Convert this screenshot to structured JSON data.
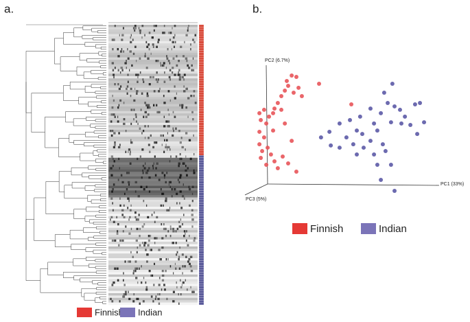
{
  "panel_labels": [
    "a.",
    "b."
  ],
  "chart_data": {
    "type": "scatter",
    "x_label": "PC1 (33%)",
    "y_label": "PC2 (6.7%)",
    "z_label": "PC3 (5%)",
    "xlim": [
      0,
      100
    ],
    "ylim": [
      0,
      100
    ],
    "series": [
      {
        "name": "Finnish",
        "color": "#e8555a",
        "x": [
          8.1,
          10.5,
          8.8,
          11.6,
          13.0,
          15.8,
          17.5,
          19.3,
          21.1,
          22.8,
          24.6,
          27.0,
          22.1,
          25.6,
          28.1,
          29.8,
          19.3,
          15.1,
          10.5,
          8.1,
          9.5,
          12.3,
          14.0,
          8.8,
          11.6,
          15.8,
          17.5,
          20.0,
          22.8,
          27.0,
          24.6,
          21.1,
          15.1,
          38.6,
          55.1,
          8.1
        ],
        "values": [
          62.2,
          64.9,
          56.8,
          54.1,
          59.5,
          65.9,
          70.3,
          75.7,
          80.0,
          83.8,
          91.9,
          90.8,
          87.6,
          78.4,
          82.2,
          75.7,
          64.9,
          48.6,
          43.2,
          37.8,
          32.4,
          35.1,
          29.7,
          27.0,
          21.6,
          24.3,
          18.9,
          28.1,
          22.7,
          16.2,
          40.5,
          54.1,
          62.2,
          85.4,
          69.2,
          47.6
        ]
      },
      {
        "name": "Indian",
        "color": "#5c5aa6",
        "x": [
          76.1,
          71.9,
          73.7,
          77.2,
          80.0,
          82.5,
          87.7,
          90.2,
          92.3,
          88.8,
          85.3,
          80.7,
          75.4,
          70.2,
          64.9,
          59.6,
          54.4,
          49.1,
          43.9,
          39.6,
          44.6,
          49.1,
          52.6,
          56.1,
          57.9,
          60.7,
          61.4,
          64.9,
          66.7,
          68.4,
          71.2,
          72.6,
          75.4,
          68.4,
          70.2,
          77.2,
          57.9,
          66.7
        ],
        "values": [
          85.4,
          78.4,
          70.3,
          67.6,
          64.9,
          59.5,
          69.2,
          70.3,
          55.1,
          45.9,
          53.0,
          54.1,
          55.1,
          62.2,
          65.9,
          59.5,
          56.8,
          54.1,
          47.6,
          43.2,
          36.8,
          35.1,
          43.2,
          37.8,
          48.6,
          45.9,
          35.1,
          40.5,
          29.7,
          48.6,
          37.8,
          32.4,
          21.6,
          21.6,
          9.7,
          1.1,
          29.7,
          54.1
        ]
      }
    ]
  }
}
